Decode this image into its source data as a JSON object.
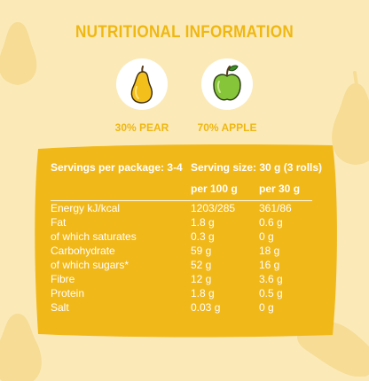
{
  "title": "NUTRITIONAL INFORMATION",
  "fruits": [
    {
      "label": "30% PEAR",
      "icon": "pear-icon"
    },
    {
      "label": "70% APPLE",
      "icon": "apple-icon"
    }
  ],
  "colors": {
    "background": "#fbeab8",
    "accent": "#efb712",
    "panel": "#f1b81a",
    "text_on_panel": "#ffffff"
  },
  "table": {
    "servings_per_package": "Servings per package: 3-4",
    "serving_size": "Serving size: 30 g (3 rolls)",
    "col_per100": "per 100 g",
    "col_per30": "per 30 g",
    "rows": [
      {
        "name": "Energy kJ/kcal",
        "per100": "1203/285",
        "per30": "361/86"
      },
      {
        "name": "Fat",
        "per100": "1.8 g",
        "per30": "0.6 g"
      },
      {
        "name": "of which saturates",
        "per100": "0.3 g",
        "per30": "0 g"
      },
      {
        "name": "Carbohydrate",
        "per100": "59 g",
        "per30": "18 g"
      },
      {
        "name": "of which sugars*",
        "per100": "52 g",
        "per30": "16 g"
      },
      {
        "name": "Fibre",
        "per100": "12 g",
        "per30": "3.6 g"
      },
      {
        "name": "Protein",
        "per100": "1.8 g",
        "per30": "0.5 g"
      },
      {
        "name": "Salt",
        "per100": "0.03 g",
        "per30": "0 g"
      }
    ]
  }
}
